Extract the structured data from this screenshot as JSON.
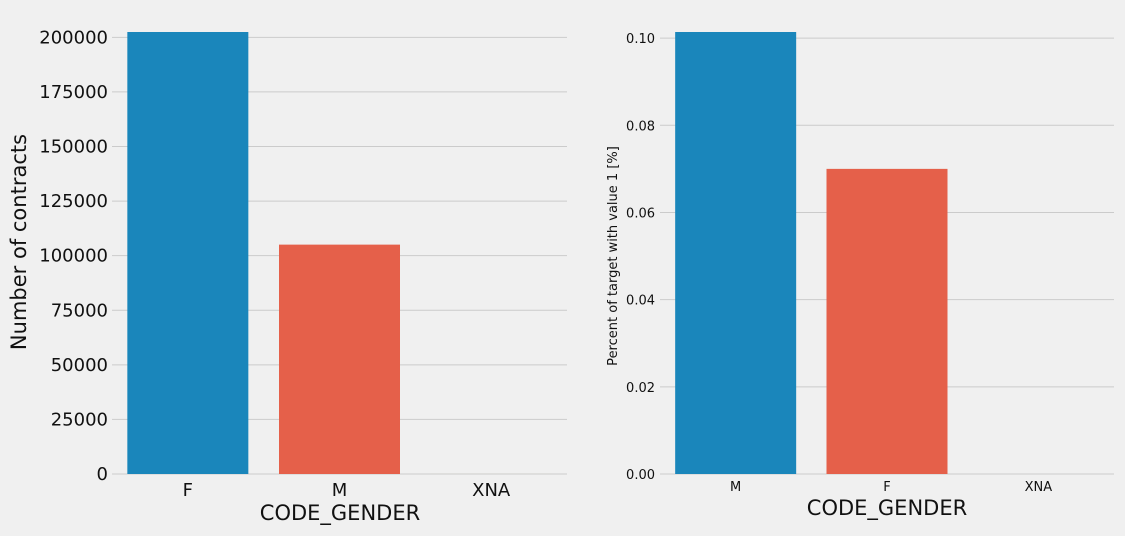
{
  "chart_data": [
    {
      "type": "bar",
      "categories": [
        "F",
        "M",
        "XNA"
      ],
      "values": [
        202448,
        105059,
        4
      ],
      "xlabel": "CODE_GENDER",
      "ylabel": "Number of contracts",
      "ylim": [
        0,
        202448
      ],
      "yticks": [
        "0",
        "25000",
        "50000",
        "75000",
        "100000",
        "125000",
        "150000",
        "175000",
        "200000"
      ],
      "colors": [
        "#1a86bb",
        "#e5604a",
        "#fcc036"
      ],
      "grid": true
    },
    {
      "type": "bar",
      "categories": [
        "M",
        "F",
        "XNA"
      ],
      "values": [
        0.1014,
        0.07,
        0.0
      ],
      "xlabel": "CODE_GENDER",
      "ylabel": "Percent of target with value 1 [%]",
      "ylim": [
        0,
        0.1014
      ],
      "yticks": [
        "0.00",
        "0.02",
        "0.04",
        "0.06",
        "0.08",
        "0.10"
      ],
      "colors": [
        "#1a86bb",
        "#e5604a",
        "#fcc036"
      ],
      "grid": true
    }
  ]
}
